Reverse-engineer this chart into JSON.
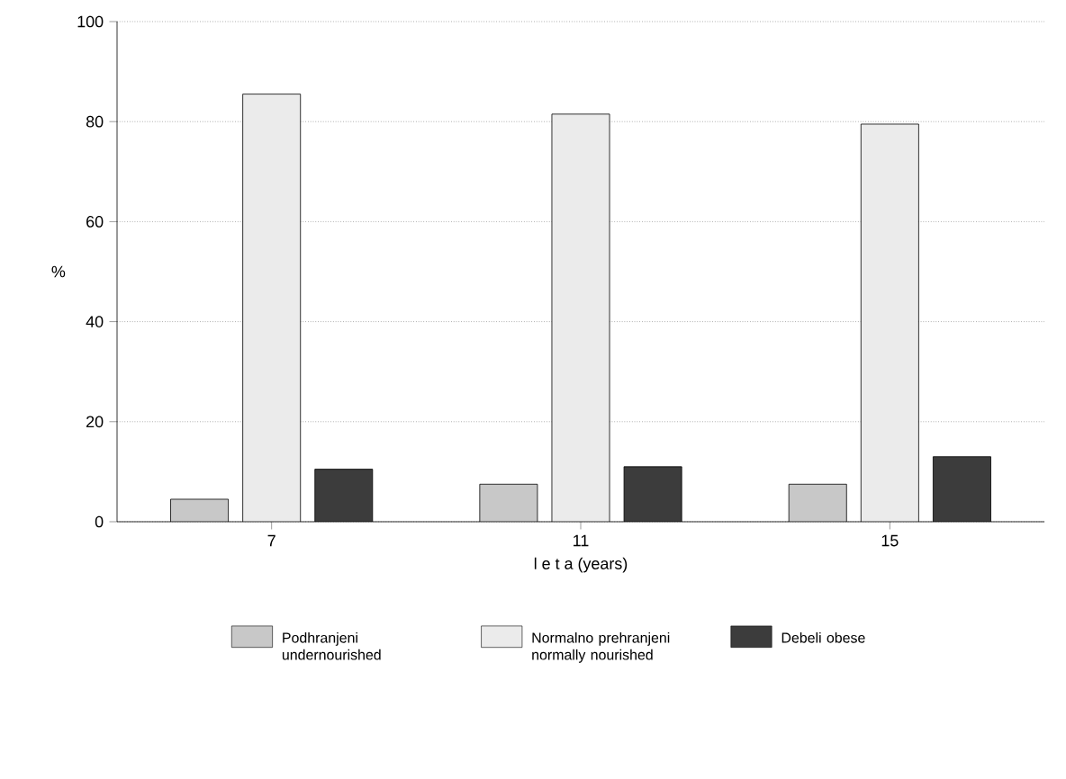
{
  "chart_data": {
    "type": "bar",
    "xlabel": "l e t a (years)",
    "ylabel": "%",
    "categories": [
      "7",
      "11",
      "15"
    ],
    "series": [
      {
        "name": "Podhranjeni undernourished",
        "color": "#c8c8c8",
        "values": [
          4.5,
          7.5,
          7.5
        ]
      },
      {
        "name": "Normalno prehranjeni normally nourished",
        "color": "#ebebeb",
        "values": [
          85.5,
          81.5,
          79.5
        ]
      },
      {
        "name": "Debeli obese",
        "color": "#3c3c3c",
        "values": [
          10.5,
          11,
          13
        ]
      }
    ],
    "ylim": [
      0,
      100
    ],
    "yticks": [
      0,
      20,
      40,
      60,
      80,
      100
    ],
    "grid": "y",
    "legend": "bottom"
  }
}
